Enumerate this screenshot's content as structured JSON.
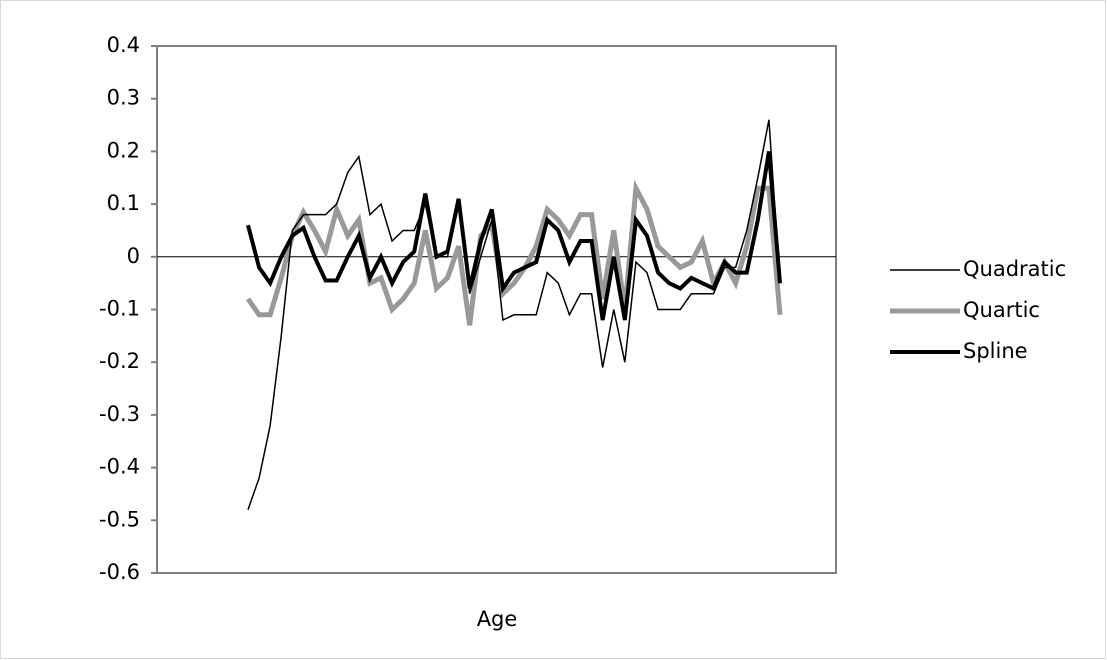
{
  "chart_data": {
    "type": "line",
    "x_label": "Age",
    "categories": [
      null,
      null,
      null,
      null,
      null,
      null,
      null,
      null,
      null,
      null,
      null,
      null,
      null,
      null,
      null,
      null,
      null,
      null,
      null,
      null,
      null,
      null,
      null,
      null,
      null,
      null,
      null,
      null,
      null,
      null,
      null,
      null,
      null,
      null,
      null,
      null,
      null,
      null,
      null,
      null,
      null,
      null,
      null,
      null,
      null,
      null,
      null,
      null,
      null
    ],
    "ylim": [
      -0.6,
      0.4
    ],
    "yticks": [
      -0.6,
      -0.5,
      -0.4,
      -0.3,
      -0.2,
      -0.1,
      0,
      0.1,
      0.2,
      0.3,
      0.4
    ],
    "grid": false,
    "legend": "right",
    "series": [
      {
        "name": "Quadratic",
        "color": "#000000",
        "line_width": 1.5,
        "values": [
          -0.48,
          -0.42,
          -0.32,
          -0.15,
          0.05,
          0.08,
          0.08,
          0.08,
          0.1,
          0.16,
          0.19,
          0.08,
          0.1,
          0.03,
          0.05,
          0.05,
          0.1,
          0.0,
          0.0,
          0.1,
          -0.07,
          0.0,
          0.07,
          -0.12,
          -0.11,
          -0.11,
          -0.11,
          -0.03,
          -0.05,
          -0.11,
          -0.07,
          -0.07,
          -0.21,
          -0.1,
          -0.2,
          -0.01,
          -0.03,
          -0.1,
          -0.1,
          -0.1,
          -0.07,
          -0.07,
          -0.07,
          -0.02,
          -0.02,
          0.05,
          0.15,
          0.26,
          -0.05
        ]
      },
      {
        "name": "Quartic",
        "color": "#999999",
        "line_width": 5,
        "values": [
          -0.08,
          -0.11,
          -0.11,
          -0.04,
          0.04,
          0.085,
          0.05,
          0.01,
          0.09,
          0.04,
          0.07,
          -0.05,
          -0.04,
          -0.1,
          -0.08,
          -0.05,
          0.05,
          -0.06,
          -0.04,
          0.02,
          -0.13,
          0.04,
          0.06,
          -0.07,
          -0.05,
          -0.02,
          0.02,
          0.09,
          0.07,
          0.04,
          0.08,
          0.08,
          -0.08,
          0.05,
          -0.1,
          0.13,
          0.09,
          0.02,
          0.0,
          -0.02,
          -0.01,
          0.03,
          -0.05,
          -0.01,
          -0.05,
          0.02,
          0.13,
          0.13,
          -0.11
        ]
      },
      {
        "name": "Spline",
        "color": "#000000",
        "line_width": 4,
        "values": [
          0.06,
          -0.02,
          -0.05,
          0.0,
          0.04,
          0.055,
          0.0,
          -0.045,
          -0.045,
          0.0,
          0.04,
          -0.04,
          0.0,
          -0.05,
          -0.01,
          0.01,
          0.12,
          0.0,
          0.01,
          0.11,
          -0.06,
          0.03,
          0.09,
          -0.06,
          -0.03,
          -0.02,
          -0.01,
          0.07,
          0.05,
          -0.01,
          0.03,
          0.03,
          -0.12,
          0.0,
          -0.12,
          0.07,
          0.04,
          -0.03,
          -0.05,
          -0.06,
          -0.04,
          -0.05,
          -0.06,
          -0.01,
          -0.03,
          -0.03,
          0.07,
          0.2,
          -0.05
        ]
      }
    ]
  }
}
